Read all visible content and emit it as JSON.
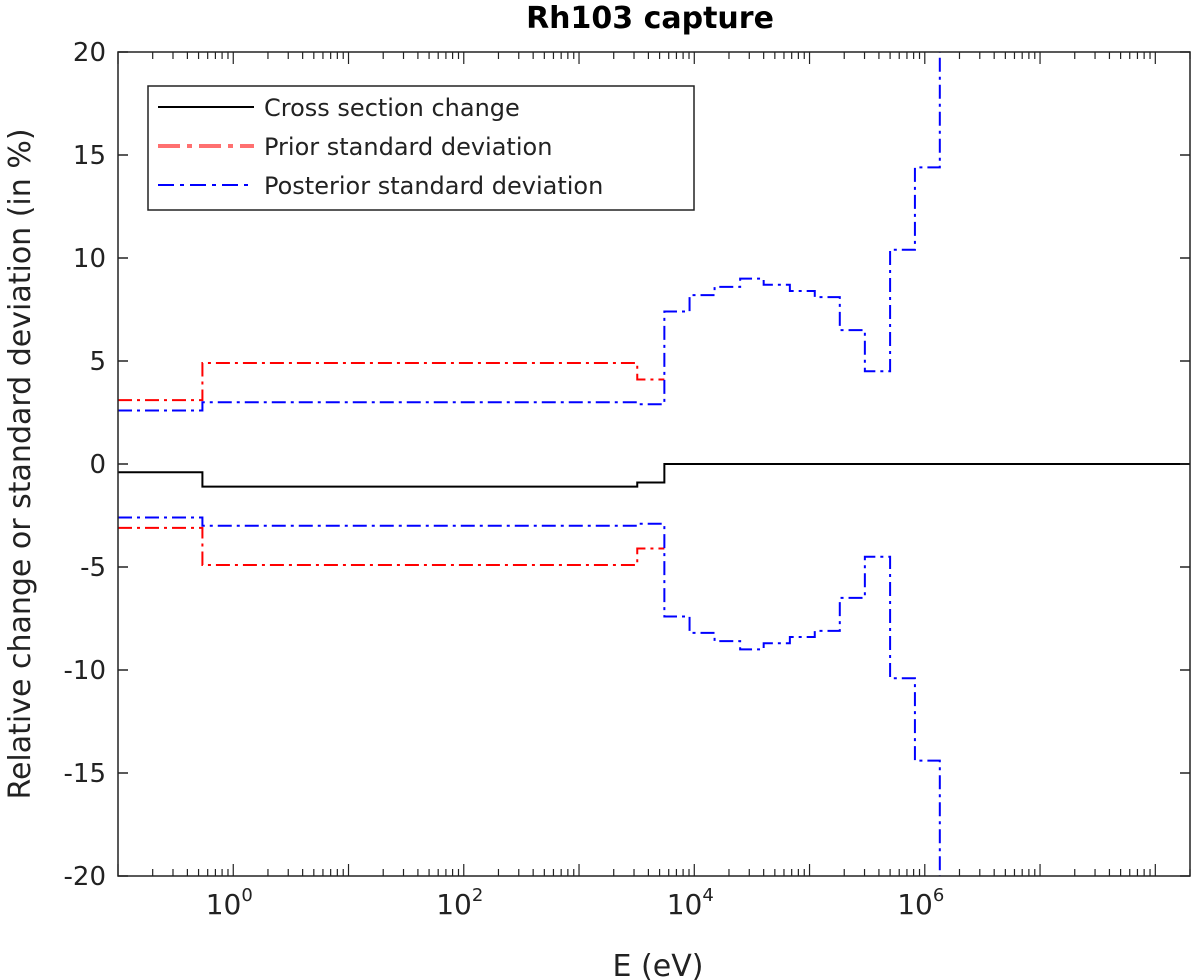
{
  "chart_data": {
    "type": "line",
    "title": "Rh103 capture",
    "xlabel": "E (eV)",
    "ylabel": "Relative change or standard deviation (in %)",
    "xscale": "log",
    "xlim": [
      0.1,
      200000000
    ],
    "ylim": [
      -20,
      20
    ],
    "yticks": [
      -20,
      -15,
      -10,
      -5,
      0,
      5,
      10,
      15,
      20
    ],
    "xticks": [
      {
        "value": 1,
        "base": "10",
        "exp": "0"
      },
      {
        "value": 100,
        "base": "10",
        "exp": "2"
      },
      {
        "value": 10000,
        "base": "10",
        "exp": "4"
      },
      {
        "value": 1000000,
        "base": "10",
        "exp": "6"
      }
    ],
    "grid": false,
    "legend_position": "top-left",
    "bin_edges": [
      0.1,
      0.54,
      3200,
      5500,
      9100,
      15000,
      25000,
      40000,
      67500,
      111000,
      183000,
      302000,
      500000,
      821000,
      1350000,
      2230000
    ],
    "series": [
      {
        "name": "Cross section change",
        "color": "#000000",
        "style": "solid",
        "mirror": false,
        "values": [
          -0.4,
          -1.1,
          -0.9,
          0.0,
          0.0,
          0.0,
          0.0,
          0.0,
          0.0,
          0.0,
          0.0,
          0.0,
          0.0,
          0.0,
          0.0,
          0.0
        ]
      },
      {
        "name": "Prior standard deviation",
        "color": "#ff0000",
        "style": "dashdot",
        "mirror": true,
        "values": [
          3.1,
          4.9,
          4.1
        ]
      },
      {
        "name": "Posterior standard deviation",
        "color": "#0000ff",
        "style": "dashdot",
        "mirror": true,
        "values": [
          2.6,
          3.0,
          2.9,
          7.4,
          8.2,
          8.6,
          9.0,
          8.7,
          8.4,
          8.1,
          6.5,
          4.5,
          10.4,
          14.4,
          21.0
        ]
      }
    ]
  }
}
